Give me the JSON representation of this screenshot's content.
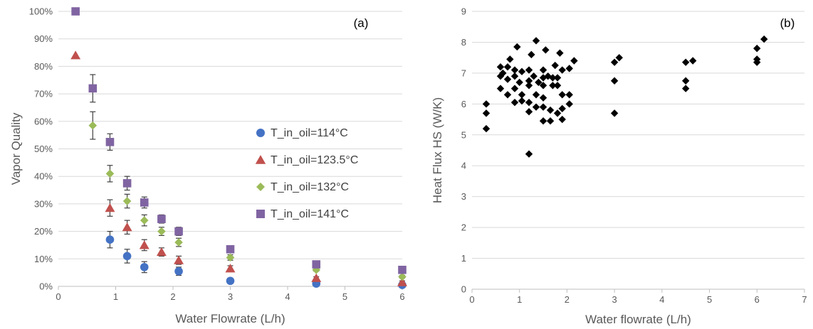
{
  "chart_data": [
    {
      "type": "scatter",
      "panel_label": "(a)",
      "xlabel": "Water Flowrate (L/h)",
      "ylabel": "Vapor Quality",
      "xlim": [
        0,
        6
      ],
      "ylim": [
        0,
        100
      ],
      "x_ticks": [
        0,
        1,
        2,
        3,
        4,
        5,
        6
      ],
      "x_tick_labels": [
        "0",
        "1",
        "2",
        "3",
        "4",
        "5",
        "6"
      ],
      "y_ticks": [
        0,
        10,
        20,
        30,
        40,
        50,
        60,
        70,
        80,
        90,
        100
      ],
      "y_tick_labels": [
        "0%",
        "10%",
        "20%",
        "30%",
        "40%",
        "50%",
        "60%",
        "70%",
        "80%",
        "90%",
        "100%"
      ],
      "grid": "horizontal",
      "legend_position": "right",
      "series": [
        {
          "name": "T_in_oil=114°C",
          "marker": "circle",
          "color": "#4472c4",
          "points": [
            {
              "x": 0.9,
              "y": 17,
              "err": 3
            },
            {
              "x": 1.2,
              "y": 11,
              "err": 2.5
            },
            {
              "x": 1.5,
              "y": 7,
              "err": 2
            },
            {
              "x": 2.1,
              "y": 5.5,
              "err": 1.5
            },
            {
              "x": 3.0,
              "y": 2,
              "err": 1
            },
            {
              "x": 4.5,
              "y": 1,
              "err": 0.5
            },
            {
              "x": 6.0,
              "y": 0.5,
              "err": 0.5
            }
          ]
        },
        {
          "name": "T_in_oil=123.5°C",
          "marker": "triangle",
          "color": "#c0504d",
          "points": [
            {
              "x": 0.3,
              "y": 84,
              "err": 0
            },
            {
              "x": 0.9,
              "y": 28.5,
              "err": 3
            },
            {
              "x": 1.2,
              "y": 21.5,
              "err": 2.5
            },
            {
              "x": 1.5,
              "y": 15,
              "err": 2
            },
            {
              "x": 1.8,
              "y": 12.5,
              "err": 1.5
            },
            {
              "x": 2.1,
              "y": 9.5,
              "err": 1.5
            },
            {
              "x": 3.0,
              "y": 6.5,
              "err": 1
            },
            {
              "x": 4.5,
              "y": 3,
              "err": 0.5
            },
            {
              "x": 6.0,
              "y": 1.5,
              "err": 0.5
            }
          ]
        },
        {
          "name": "T_in_oil=132°C",
          "marker": "diamond",
          "color": "#9bbb59",
          "points": [
            {
              "x": 0.6,
              "y": 58.5,
              "err": 5
            },
            {
              "x": 0.9,
              "y": 41,
              "err": 3
            },
            {
              "x": 1.2,
              "y": 31,
              "err": 2.5
            },
            {
              "x": 1.5,
              "y": 24,
              "err": 2
            },
            {
              "x": 1.8,
              "y": 20,
              "err": 1.5
            },
            {
              "x": 2.1,
              "y": 16,
              "err": 1.5
            },
            {
              "x": 3.0,
              "y": 10.5,
              "err": 1
            },
            {
              "x": 4.5,
              "y": 6,
              "err": 0.5
            },
            {
              "x": 6.0,
              "y": 3.5,
              "err": 0.5
            }
          ]
        },
        {
          "name": "T_in_oil=141°C",
          "marker": "square",
          "color": "#8064a2",
          "points": [
            {
              "x": 0.3,
              "y": 100,
              "err": 0
            },
            {
              "x": 0.6,
              "y": 72,
              "err": 5
            },
            {
              "x": 0.9,
              "y": 52.5,
              "err": 3
            },
            {
              "x": 1.2,
              "y": 37.5,
              "err": 2.5
            },
            {
              "x": 1.5,
              "y": 30.5,
              "err": 2
            },
            {
              "x": 1.8,
              "y": 24.5,
              "err": 1.5
            },
            {
              "x": 2.1,
              "y": 20,
              "err": 1.5
            },
            {
              "x": 3.0,
              "y": 13.5,
              "err": 1
            },
            {
              "x": 4.5,
              "y": 8,
              "err": 0.5
            },
            {
              "x": 6.0,
              "y": 6,
              "err": 0.5
            }
          ]
        }
      ]
    },
    {
      "type": "scatter",
      "panel_label": "(b)",
      "xlabel": "Water flowrate (L/h)",
      "ylabel": "Heat Flux HS (W/K)",
      "xlim": [
        0,
        7
      ],
      "ylim": [
        0,
        9
      ],
      "x_ticks": [
        0,
        1,
        2,
        3,
        4,
        5,
        6,
        7
      ],
      "x_tick_labels": [
        "0",
        "1",
        "2",
        "3",
        "4",
        "5",
        "6",
        "7"
      ],
      "y_ticks": [
        0,
        1,
        2,
        3,
        4,
        5,
        6,
        7,
        8,
        9
      ],
      "y_tick_labels": [
        "0",
        "1",
        "2",
        "3",
        "4",
        "5",
        "6",
        "7",
        "8",
        "9"
      ],
      "grid": "horizontal",
      "series": [
        {
          "marker": "diamond",
          "color": "#000000",
          "points": [
            {
              "x": 0.3,
              "y": 5.2
            },
            {
              "x": 0.3,
              "y": 5.7
            },
            {
              "x": 0.3,
              "y": 6.0
            },
            {
              "x": 0.6,
              "y": 6.5
            },
            {
              "x": 0.6,
              "y": 6.9
            },
            {
              "x": 0.6,
              "y": 7.2
            },
            {
              "x": 0.65,
              "y": 7.0
            },
            {
              "x": 0.75,
              "y": 6.3
            },
            {
              "x": 0.75,
              "y": 6.8
            },
            {
              "x": 0.75,
              "y": 7.2
            },
            {
              "x": 0.8,
              "y": 7.45
            },
            {
              "x": 0.9,
              "y": 6.05
            },
            {
              "x": 0.9,
              "y": 6.5
            },
            {
              "x": 0.9,
              "y": 6.9
            },
            {
              "x": 0.9,
              "y": 7.1
            },
            {
              "x": 0.95,
              "y": 7.85
            },
            {
              "x": 1.0,
              "y": 6.7
            },
            {
              "x": 1.05,
              "y": 6.1
            },
            {
              "x": 1.05,
              "y": 6.3
            },
            {
              "x": 1.05,
              "y": 7.05
            },
            {
              "x": 1.2,
              "y": 4.38
            },
            {
              "x": 1.2,
              "y": 5.75
            },
            {
              "x": 1.2,
              "y": 6.05
            },
            {
              "x": 1.2,
              "y": 6.6
            },
            {
              "x": 1.2,
              "y": 6.75
            },
            {
              "x": 1.2,
              "y": 7.1
            },
            {
              "x": 1.25,
              "y": 7.6
            },
            {
              "x": 1.3,
              "y": 6.9
            },
            {
              "x": 1.35,
              "y": 5.9
            },
            {
              "x": 1.35,
              "y": 6.3
            },
            {
              "x": 1.35,
              "y": 8.05
            },
            {
              "x": 1.4,
              "y": 6.7
            },
            {
              "x": 1.5,
              "y": 5.45
            },
            {
              "x": 1.5,
              "y": 5.9
            },
            {
              "x": 1.5,
              "y": 6.2
            },
            {
              "x": 1.5,
              "y": 6.6
            },
            {
              "x": 1.5,
              "y": 6.85
            },
            {
              "x": 1.5,
              "y": 7.1
            },
            {
              "x": 1.55,
              "y": 7.75
            },
            {
              "x": 1.6,
              "y": 6.9
            },
            {
              "x": 1.65,
              "y": 5.45
            },
            {
              "x": 1.65,
              "y": 5.8
            },
            {
              "x": 1.7,
              "y": 6.6
            },
            {
              "x": 1.7,
              "y": 6.85
            },
            {
              "x": 1.75,
              "y": 7.25
            },
            {
              "x": 1.8,
              "y": 5.7
            },
            {
              "x": 1.8,
              "y": 6.6
            },
            {
              "x": 1.8,
              "y": 6.85
            },
            {
              "x": 1.85,
              "y": 7.65
            },
            {
              "x": 1.9,
              "y": 5.5
            },
            {
              "x": 1.9,
              "y": 5.85
            },
            {
              "x": 1.9,
              "y": 6.3
            },
            {
              "x": 1.9,
              "y": 7.1
            },
            {
              "x": 2.05,
              "y": 6.0
            },
            {
              "x": 2.05,
              "y": 6.3
            },
            {
              "x": 2.05,
              "y": 7.15
            },
            {
              "x": 2.15,
              "y": 7.4
            },
            {
              "x": 3.0,
              "y": 5.7
            },
            {
              "x": 3.0,
              "y": 6.75
            },
            {
              "x": 3.0,
              "y": 7.35
            },
            {
              "x": 3.1,
              "y": 7.5
            },
            {
              "x": 4.5,
              "y": 6.5
            },
            {
              "x": 4.5,
              "y": 6.75
            },
            {
              "x": 4.5,
              "y": 7.35
            },
            {
              "x": 4.65,
              "y": 7.4
            },
            {
              "x": 6.0,
              "y": 7.35
            },
            {
              "x": 6.0,
              "y": 7.45
            },
            {
              "x": 6.0,
              "y": 7.8
            },
            {
              "x": 6.15,
              "y": 8.1
            }
          ]
        }
      ]
    }
  ]
}
